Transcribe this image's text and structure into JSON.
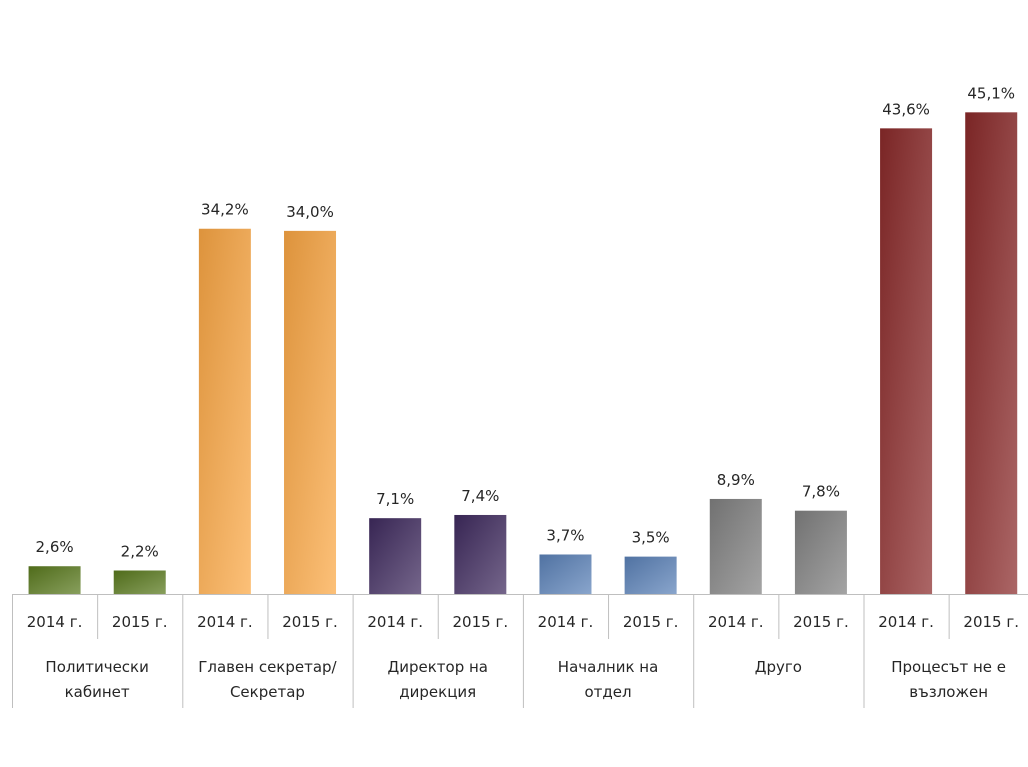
{
  "chart_data": {
    "type": "bar",
    "groups": [
      {
        "label_lines": [
          "Политически",
          "кабинет"
        ],
        "color": "#5a7a1e",
        "bars": [
          {
            "year": "2014 г.",
            "value": 2.6,
            "label": "2,6%"
          },
          {
            "year": "2015 г.",
            "value": 2.2,
            "label": "2,2%"
          }
        ]
      },
      {
        "label_lines": [
          "Главен секретар/",
          "Секретар"
        ],
        "color": "#fba744",
        "bars": [
          {
            "year": "2014 г.",
            "value": 34.2,
            "label": "34,2%"
          },
          {
            "year": "2015 г.",
            "value": 34.0,
            "label": "34,0%"
          }
        ]
      },
      {
        "label_lines": [
          "Директор на",
          "дирекция"
        ],
        "color": "#3f2a5e",
        "bars": [
          {
            "year": "2014 г.",
            "value": 7.1,
            "label": "7,1%"
          },
          {
            "year": "2015 г.",
            "value": 7.4,
            "label": "7,4%"
          }
        ]
      },
      {
        "label_lines": [
          "Началник на",
          "отдел"
        ],
        "color": "#5b82b8",
        "bars": [
          {
            "year": "2014 г.",
            "value": 3.7,
            "label": "3,7%"
          },
          {
            "year": "2015 г.",
            "value": 3.5,
            "label": "3,5%"
          }
        ]
      },
      {
        "label_lines": [
          "Друго"
        ],
        "color": "#808080",
        "bars": [
          {
            "year": "2014 г.",
            "value": 8.9,
            "label": "8,9%"
          },
          {
            "year": "2015 г.",
            "value": 7.8,
            "label": "7,8%"
          }
        ]
      },
      {
        "label_lines": [
          "Процесът не е",
          "възложен"
        ],
        "color": "#8b2a2a",
        "bars": [
          {
            "year": "2014 г.",
            "value": 43.6,
            "label": "43,6%"
          },
          {
            "year": "2015 г.",
            "value": 45.1,
            "label": "45,1%"
          }
        ]
      }
    ],
    "ylim": [
      0,
      50
    ],
    "grid": false,
    "legend": "none"
  }
}
